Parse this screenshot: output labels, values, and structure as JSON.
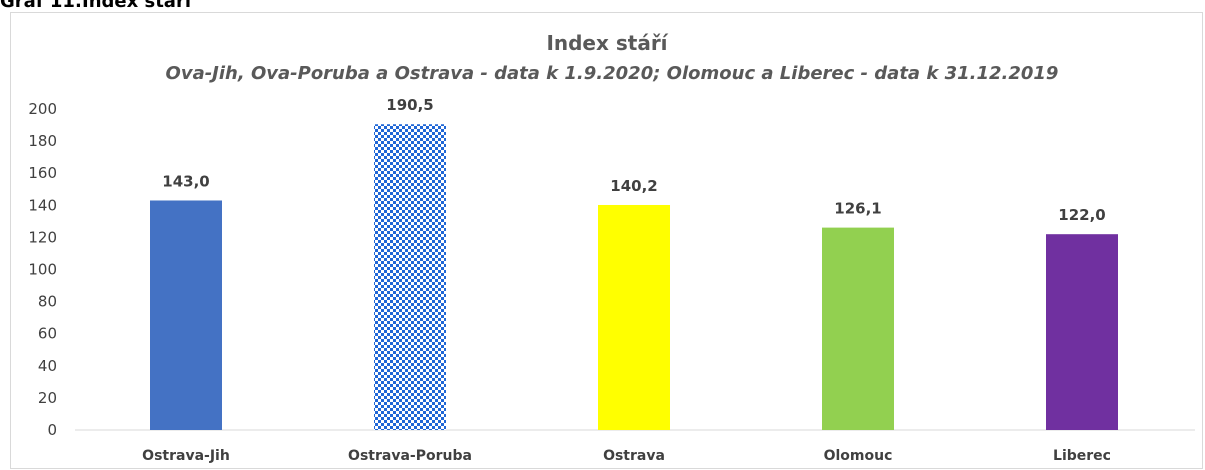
{
  "caption": {
    "number": "Graf 11.",
    "title": "Index stáří"
  },
  "chart_data": {
    "type": "bar",
    "title": "Index stáří",
    "subtitle": "Ova-Jih, Ova-Poruba a Ostrava - data k 1.9.2020; Olomouc a Liberec - data k 31.12.2019",
    "categories": [
      "Ostrava-Jih",
      "Ostrava-Poruba",
      "Ostrava",
      "Olomouc",
      "Liberec"
    ],
    "values": [
      143.0,
      190.5,
      140.2,
      126.1,
      122.0
    ],
    "value_labels": [
      "143,0",
      "190,5",
      "140,2",
      "126,1",
      "122,0"
    ],
    "colors": [
      "#4472c4",
      "#1f66d6",
      "#ffff00",
      "#92d050",
      "#7030a0"
    ],
    "patterns": [
      null,
      "checkerboard",
      null,
      null,
      null
    ],
    "ylim": [
      0,
      200
    ],
    "yticks": [
      0,
      20,
      40,
      60,
      80,
      100,
      120,
      140,
      160,
      180,
      200
    ],
    "grid": false
  }
}
